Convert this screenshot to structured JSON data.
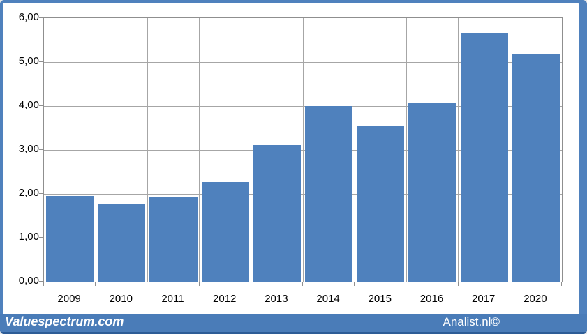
{
  "footer": {
    "brand_left": "Valuespectrum.com",
    "brand_right": "Analist.nl©"
  },
  "colors": {
    "bar_fill": "#4f81bd",
    "frame": "#4f81bd",
    "footer_bg": "#4a7cb8",
    "footer_border": "#2d5c96",
    "gridline": "#a6a6a6",
    "axis_line": "#8f8f8f",
    "label_text": "#000000",
    "footer_text": "#ffffff",
    "plot_bg": "#ffffff"
  },
  "chart_data": {
    "type": "bar",
    "title": "",
    "xlabel": "",
    "ylabel": "",
    "categories": [
      "2009",
      "2010",
      "2011",
      "2012",
      "2013",
      "2014",
      "2015",
      "2016",
      "2017",
      "2020"
    ],
    "values": [
      1.95,
      1.78,
      1.93,
      2.27,
      3.11,
      4.0,
      3.56,
      4.06,
      5.67,
      5.17
    ],
    "ylim": [
      0,
      6
    ],
    "y_ticks": [
      {
        "value": 6,
        "label": "6,00"
      },
      {
        "value": 5,
        "label": "5,00"
      },
      {
        "value": 4,
        "label": "4,00"
      },
      {
        "value": 3,
        "label": "3,00"
      },
      {
        "value": 2,
        "label": "2,00"
      },
      {
        "value": 1,
        "label": "1,00"
      },
      {
        "value": 0,
        "label": "0,00"
      }
    ],
    "grid": true,
    "legend": false
  }
}
